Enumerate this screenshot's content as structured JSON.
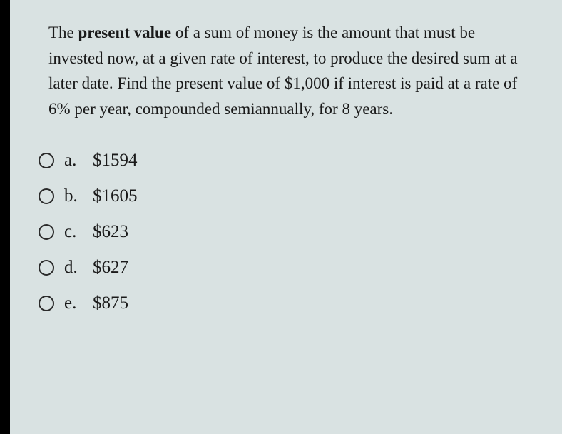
{
  "question": {
    "text_parts": [
      {
        "text": "The ",
        "bold": false
      },
      {
        "text": "present value",
        "bold": true
      },
      {
        "text": " of a sum of money is the amount that must be invested now, at a given rate of interest, to produce the desired sum at a later date. Find the present value of $1,000 if interest is paid at a rate of 6% per year, compounded semiannually, for 8 years.",
        "bold": false
      }
    ]
  },
  "options": [
    {
      "letter": "a.",
      "value": "$1594"
    },
    {
      "letter": "b.",
      "value": "$1605"
    },
    {
      "letter": "c.",
      "value": "$623"
    },
    {
      "letter": "d.",
      "value": "$627"
    },
    {
      "letter": "e.",
      "value": "$875"
    }
  ],
  "colors": {
    "background": "#d9e2e2",
    "text": "#1a1a1a",
    "radio_border": "#2a2a2a"
  },
  "typography": {
    "question_fontsize": 23,
    "option_fontsize": 25,
    "font_family": "Georgia, serif"
  }
}
